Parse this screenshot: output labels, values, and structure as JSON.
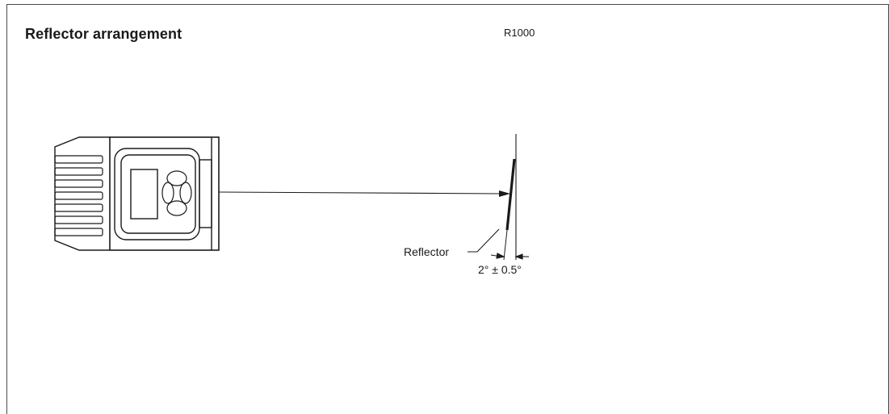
{
  "diagram": {
    "title": "Reflector arrangement",
    "code": "R1000",
    "reflector_label": "Reflector",
    "angle_label": "2° ± 0.5°"
  }
}
